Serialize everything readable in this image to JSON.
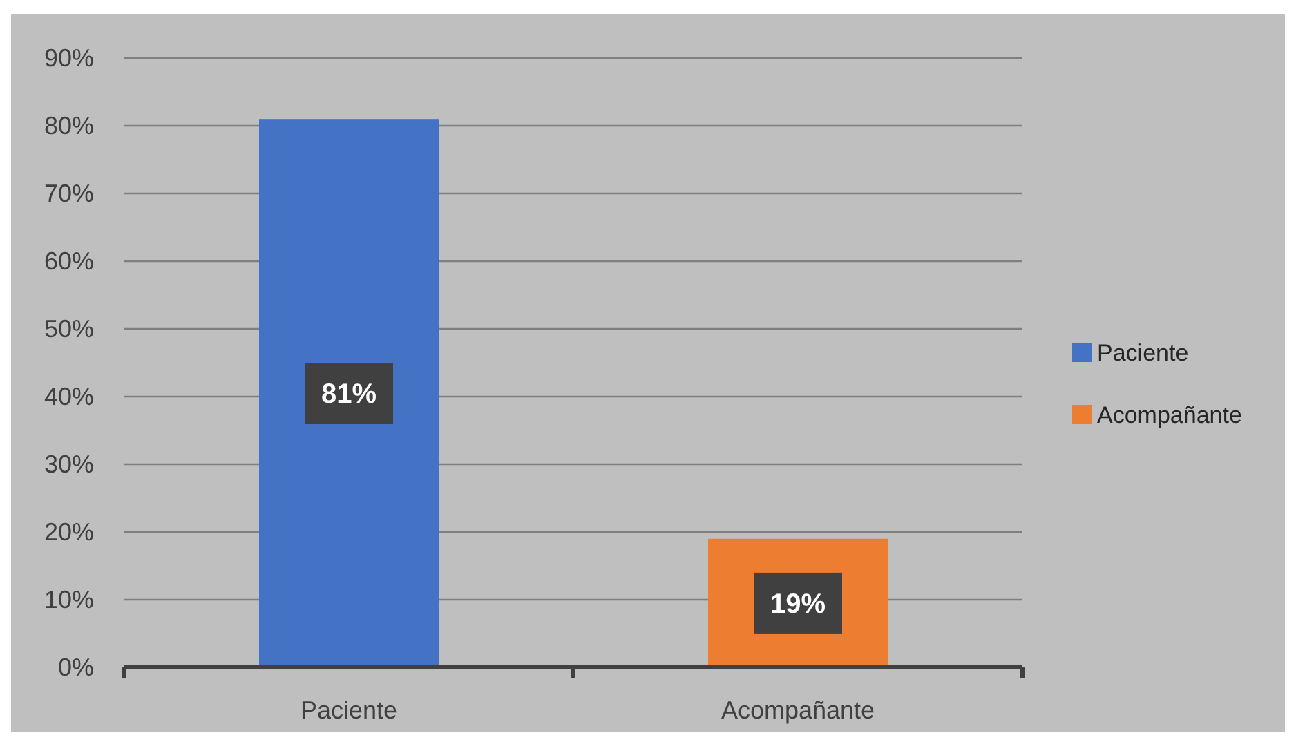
{
  "chart_data": {
    "type": "bar",
    "categories": [
      "Paciente",
      "Acompañante"
    ],
    "series": [
      {
        "name": "Paciente",
        "color": "#4472c4",
        "values": [
          81,
          null
        ],
        "value_labels": [
          "81%",
          null
        ]
      },
      {
        "name": "Acompañante",
        "color": "#ed7d31",
        "values": [
          null,
          19
        ],
        "value_labels": [
          null,
          "19%"
        ]
      }
    ],
    "ylim": [
      0,
      90
    ],
    "yticks": [
      {
        "value": 0,
        "label": "0%"
      },
      {
        "value": 10,
        "label": "10%"
      },
      {
        "value": 20,
        "label": "20%"
      },
      {
        "value": 30,
        "label": "30%"
      },
      {
        "value": 40,
        "label": "40%"
      },
      {
        "value": 50,
        "label": "50%"
      },
      {
        "value": 60,
        "label": "60%"
      },
      {
        "value": 70,
        "label": "70%"
      },
      {
        "value": 80,
        "label": "80%"
      },
      {
        "value": 90,
        "label": "90%"
      }
    ],
    "grid": "y",
    "legend": "right"
  }
}
